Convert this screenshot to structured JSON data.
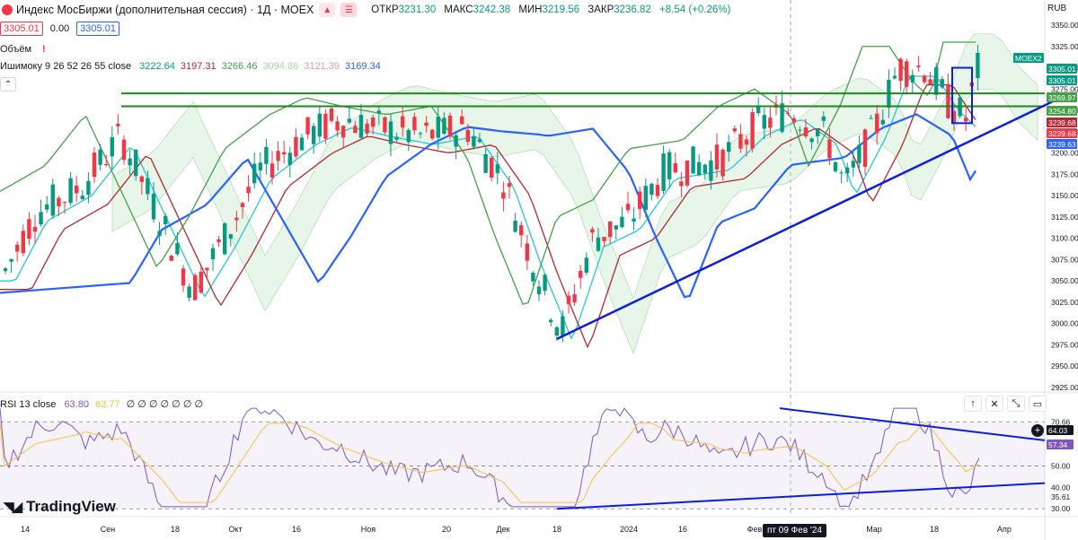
{
  "header": {
    "title": "Индекс МосБиржи (дополнительная сессия) · 1Д · MOEX",
    "open_label": "ОТКР",
    "open": "3231.30",
    "high_label": "МАКС",
    "high": "3242.38",
    "low_label": "МИН",
    "low": "3219.56",
    "close_label": "ЗАКР",
    "close": "3236.82",
    "change": "+8.54 (+0.26%)",
    "currency": "RUB"
  },
  "price_row": {
    "sell": "3305.01",
    "spread": "0.00",
    "buy": "3305.01"
  },
  "volume": {
    "label": "Объём",
    "warning": "!"
  },
  "ichimoku": {
    "label": "Ишимоку 9 26 52 26 55 close",
    "values": [
      "3222.64",
      "3197.31",
      "3266.46",
      "3094.86",
      "3121.39",
      "3169.34"
    ],
    "colors": [
      "#089981",
      "#b22833",
      "#43a047",
      "#a5d6a7",
      "#ef9a9a",
      "#2962ff"
    ]
  },
  "rsi": {
    "label": "RSI 13 close",
    "v1": "63.80",
    "v2": "63.77",
    "rest": "∅ ∅ ∅ ∅ ∅ ∅ ∅",
    "tools": [
      "↑",
      "✕",
      "⤡",
      "▭"
    ]
  },
  "footer": {
    "brand": "TradingView",
    "date_badge": "пт 09 Фев '24"
  },
  "chart_data": {
    "type": "candlestick",
    "ylim": [
      2925,
      3350
    ],
    "y_ticks": [
      "3350.00",
      "3325.00",
      "3300.00",
      "3275.00",
      "3250.00",
      "3225.00",
      "3200.00",
      "3175.00",
      "3150.00",
      "3125.00",
      "3100.00",
      "3075.00",
      "3050.00",
      "3025.00",
      "3000.00",
      "2975.00",
      "2950.00",
      "2925.00"
    ],
    "x_ticks": [
      "14",
      "Сен",
      "18",
      "Окт",
      "16",
      "Ноя",
      "20",
      "Дек",
      "18",
      "2024",
      "16",
      "Фев",
      "Мар",
      "18",
      "Апр"
    ],
    "price_labels": [
      {
        "text": "MOEX2",
        "color": "#089981",
        "dark": true
      },
      {
        "text": "3305.01",
        "color": "#089981"
      },
      {
        "text": "3305.01",
        "color": "#089981"
      },
      {
        "text": "3269.97",
        "color": "#43a047"
      },
      {
        "text": "3254.80",
        "color": "#43a047"
      },
      {
        "text": "3239.68",
        "color": "#b22833"
      },
      {
        "text": "3239.68",
        "color": "#f23645"
      },
      {
        "text": "3239.63",
        "color": "#2962ff"
      }
    ],
    "rsi_ticks": [
      "70.66",
      "50.00",
      "40.00",
      "35.61",
      "30.00"
    ],
    "rsi_labels": [
      {
        "text": "64.03",
        "color": "#131722"
      },
      {
        "text": "57.34",
        "color": "#7e57c2"
      }
    ],
    "rsi_ylim": [
      28,
      80
    ]
  },
  "colors": {
    "up": "#089981",
    "down": "#f23645",
    "trend": "#0d1de0",
    "level": "#1b8a1b"
  }
}
